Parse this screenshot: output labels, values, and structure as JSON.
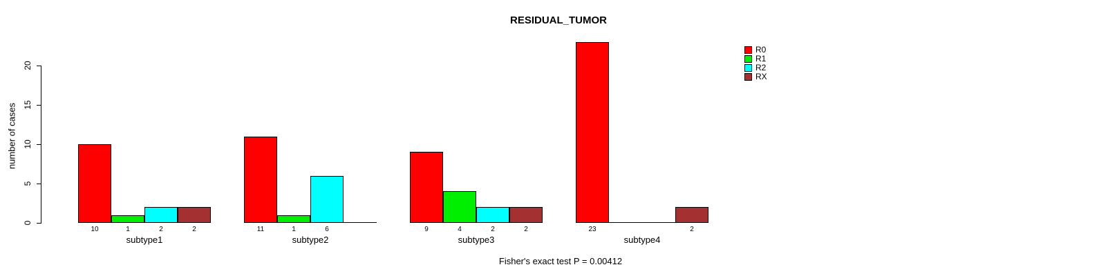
{
  "chart_data": {
    "type": "bar",
    "title": "RESIDUAL_TUMOR",
    "xlabel": "",
    "ylabel": "number of cases",
    "annotation": "Fisher's exact test P = 0.00412",
    "categories": [
      "subtype1",
      "subtype2",
      "subtype3",
      "subtype4"
    ],
    "series": [
      {
        "name": "R0",
        "color": "#ff0000",
        "values": [
          10,
          11,
          9,
          23
        ]
      },
      {
        "name": "R1",
        "color": "#00ee00",
        "values": [
          1,
          1,
          4,
          0
        ]
      },
      {
        "name": "R2",
        "color": "#00ffff",
        "values": [
          2,
          6,
          2,
          0
        ]
      },
      {
        "name": "RX",
        "color": "#a53030",
        "values": [
          2,
          0,
          2,
          2
        ]
      }
    ],
    "yticks": [
      0,
      5,
      10,
      15,
      20
    ],
    "ylim": [
      0,
      23.5
    ],
    "grid": false,
    "legend_position": "right-of-plot",
    "notes": "zero-value slots show no bar and no value label; baseline drawn under each group of 4 slots"
  }
}
